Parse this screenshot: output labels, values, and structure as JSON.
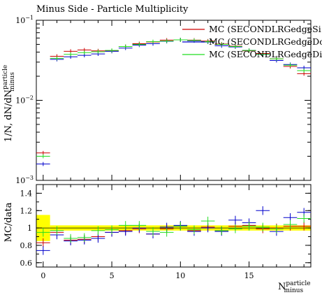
{
  "chart_data": [
    {
      "type": "scatter",
      "title": "Minus Side - Particle Multiplicity",
      "ylabel": "1/N, dN/dN",
      "ylabel_sup": "particle",
      "ylabel_sub": "minus",
      "yscale": "log",
      "ylim": [
        0.001,
        0.1
      ],
      "xlim": [
        -0.5,
        19.5
      ],
      "y_ticks": [
        {
          "value": 0.1,
          "label": "10",
          "exp": "−1"
        },
        {
          "value": 0.01,
          "label": "10",
          "exp": "−2"
        },
        {
          "value": 0.001,
          "label": "10",
          "exp": "−3"
        }
      ],
      "legend": "top-right",
      "series": [
        {
          "name": "MC (SECONDLRGedgeSi",
          "color": "#cc0000",
          "x": [
            0,
            1,
            2,
            3,
            4,
            5,
            6,
            7,
            8,
            9,
            10,
            11,
            12,
            13,
            14,
            15,
            16,
            17,
            18,
            19
          ],
          "y": [
            0.0022,
            0.0355,
            0.041,
            0.0425,
            0.0415,
            0.0415,
            0.047,
            0.051,
            0.0535,
            0.0565,
            0.057,
            0.0565,
            0.055,
            0.0505,
            0.0475,
            0.0415,
            0.0385,
            0.033,
            0.0265,
            0.0215
          ]
        },
        {
          "name": "MC (SECONDLRGedgeDo",
          "color": "#0000cc",
          "x": [
            0,
            1,
            2,
            3,
            4,
            5,
            6,
            7,
            8,
            9,
            10,
            11,
            12,
            13,
            14,
            15,
            16,
            17,
            18,
            19
          ],
          "y": [
            0.0016,
            0.0325,
            0.035,
            0.0365,
            0.038,
            0.041,
            0.045,
            0.049,
            0.051,
            0.0545,
            0.057,
            0.0555,
            0.0535,
            0.048,
            0.0465,
            0.042,
            0.0375,
            0.0315,
            0.028,
            0.0255
          ]
        },
        {
          "name": "MC (SECONDLRGedgeDi",
          "color": "#22dd22",
          "x": [
            0,
            1,
            2,
            3,
            4,
            5,
            6,
            7,
            8,
            9,
            10,
            11,
            12,
            13,
            14,
            15,
            16,
            17,
            18,
            19
          ],
          "y": [
            0.002,
            0.0335,
            0.0375,
            0.0395,
            0.0405,
            0.042,
            0.047,
            0.05,
            0.054,
            0.055,
            0.057,
            0.056,
            0.054,
            0.05,
            0.047,
            0.042,
            0.0375,
            0.033,
            0.0275,
            0.0235
          ]
        }
      ]
    },
    {
      "type": "scatter",
      "ylabel": "MC/data",
      "xlabel": "N",
      "xlabel_sup": "particle",
      "xlabel_sub": "minus",
      "ylim": [
        0.55,
        1.5
      ],
      "xlim": [
        -0.5,
        19.5
      ],
      "y_ticks": [
        0.6,
        0.8,
        1,
        1.2,
        1.4
      ],
      "x_ticks": [
        0,
        5,
        10,
        15
      ],
      "band_color": "#ffff00",
      "band": [
        {
          "x0": -0.5,
          "x1": 0.5,
          "lo": 0.85,
          "hi": 1.15
        },
        {
          "x0": 0.5,
          "x1": 19.5,
          "lo": 0.97,
          "hi": 1.03
        }
      ],
      "series": [
        {
          "name": "MC (SECONDLRGedgeSi",
          "color": "#cc0000",
          "x": [
            0,
            1,
            2,
            3,
            4,
            5,
            6,
            7,
            8,
            9,
            10,
            11,
            12,
            13,
            14,
            15,
            16,
            17,
            18,
            19
          ],
          "y": [
            0.83,
            0.95,
            0.86,
            0.87,
            0.9,
            0.95,
            0.97,
            0.99,
            0.93,
            0.99,
            1.02,
            0.97,
            1.01,
            0.97,
            1.02,
            1.03,
            0.99,
            1.0,
            1.02,
            1.02
          ]
        },
        {
          "name": "MC (SECONDLRGedgeDo",
          "color": "#0000cc",
          "x": [
            0,
            1,
            2,
            3,
            4,
            5,
            6,
            7,
            8,
            9,
            10,
            11,
            12,
            13,
            14,
            15,
            16,
            17,
            18,
            19
          ],
          "y": [
            0.74,
            0.92,
            0.85,
            0.86,
            0.88,
            0.95,
            0.96,
            1.0,
            0.93,
            1.01,
            1.03,
            0.96,
            1.0,
            0.96,
            1.09,
            1.06,
            1.2,
            0.96,
            1.12,
            1.18
          ]
        },
        {
          "name": "MC (SECONDLRGedgeDi",
          "color": "#22dd22",
          "x": [
            0,
            1,
            2,
            3,
            4,
            5,
            6,
            7,
            8,
            9,
            10,
            11,
            12,
            13,
            14,
            15,
            16,
            17,
            18,
            19
          ],
          "y": [
            0.95,
            0.97,
            0.88,
            0.89,
            0.97,
            0.98,
            1.03,
            1.03,
            0.96,
            0.95,
            1.02,
            0.98,
            1.08,
            0.97,
            0.99,
            1.02,
            1.01,
            0.99,
            1.04,
            1.11
          ]
        }
      ]
    }
  ]
}
